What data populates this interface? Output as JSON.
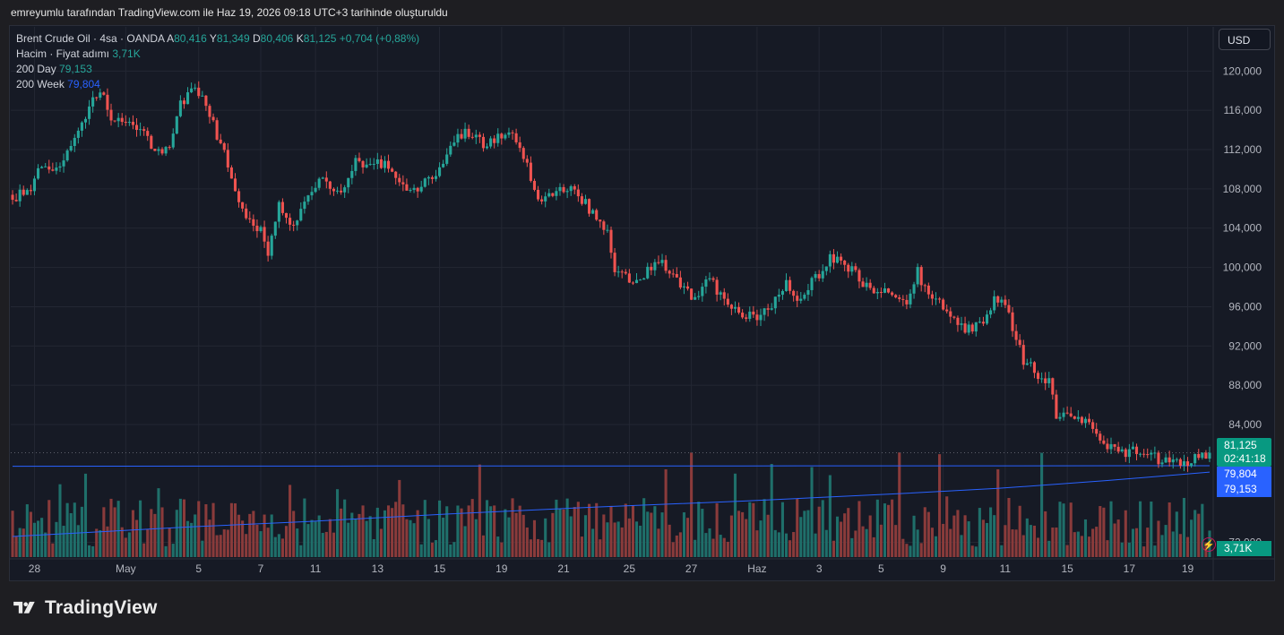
{
  "caption": "emreyumlu tarafından TradingView.com ile Haz 19, 2026 09:18 UTC+3 tarihinde oluşturuldu",
  "legend": {
    "symbol": "Brent Crude Oil · 4sa · OANDA",
    "o_label": "A",
    "o_value": "80,416",
    "h_label": "Y",
    "h_value": "81,349",
    "l_label": "D",
    "l_value": "80,406",
    "c_label": "K",
    "c_value": "81,125",
    "change": "+0,704 (+0,88%)",
    "volume_label": "Hacim · Fiyat adımı",
    "volume_value": "3,71K",
    "sma_day_label": "200 Day",
    "sma_day_value": "79,153",
    "sma_week_label": "200 Week",
    "sma_week_value": "79,804"
  },
  "currency_button": "USD",
  "badges": {
    "price": "81,125",
    "countdown": "02:41:18",
    "sma_week": "79,804",
    "sma_day": "79,153",
    "volume": "3,71K"
  },
  "brand": "TradingView",
  "colors": {
    "background": "#161a25",
    "up": "#26a69a",
    "down": "#ef5350",
    "volume_up": "#1f6f6a",
    "volume_down": "#8a3b3b",
    "sma_week": "#2962ff",
    "sma_day": "#2962ff",
    "grid": "#232733",
    "axis_text": "#b2b5be"
  },
  "chart_data": {
    "type": "candlestick",
    "title": "Brent Crude Oil · 4sa · OANDA",
    "y_axis_ticks": [
      120000,
      116000,
      112000,
      108000,
      104000,
      100000,
      96000,
      92000,
      88000,
      84000,
      72000
    ],
    "y_tick_labels": [
      "120,000",
      "116,000",
      "112,000",
      "108,000",
      "104,000",
      "100,000",
      "96,000",
      "92,000",
      "88,000",
      "84,000",
      "72,000"
    ],
    "ylim": [
      70500,
      124500
    ],
    "x_tick_labels": [
      "28",
      "May",
      "5",
      "7",
      "11",
      "13",
      "15",
      "19",
      "21",
      "25",
      "27",
      "Haz",
      "3",
      "5",
      "9",
      "11",
      "15",
      "17",
      "19"
    ],
    "x_tick_positions": [
      6,
      31,
      51,
      68,
      83,
      100,
      117,
      134,
      151,
      169,
      186,
      204,
      221,
      238,
      255,
      272,
      289,
      306,
      322
    ],
    "candle_count": 329,
    "price_path": [
      [
        0,
        107000
      ],
      [
        5,
        108200
      ],
      [
        8,
        110500
      ],
      [
        12,
        110000
      ],
      [
        16,
        112500
      ],
      [
        19,
        115000
      ],
      [
        22,
        117000
      ],
      [
        25,
        117500
      ],
      [
        27,
        115500
      ],
      [
        30,
        115000
      ],
      [
        34,
        114500
      ],
      [
        37,
        113000
      ],
      [
        40,
        111500
      ],
      [
        43,
        112000
      ],
      [
        46,
        116500
      ],
      [
        49,
        118500
      ],
      [
        52,
        117000
      ],
      [
        55,
        114500
      ],
      [
        58,
        111500
      ],
      [
        61,
        108000
      ],
      [
        63,
        106200
      ],
      [
        66,
        104200
      ],
      [
        68,
        104000
      ],
      [
        70,
        101500
      ],
      [
        73,
        106500
      ],
      [
        75,
        104800
      ],
      [
        77,
        104200
      ],
      [
        81,
        107000
      ],
      [
        84,
        109000
      ],
      [
        86,
        108800
      ],
      [
        89,
        107700
      ],
      [
        91,
        108200
      ],
      [
        94,
        111000
      ],
      [
        97,
        110500
      ],
      [
        100,
        111000
      ],
      [
        103,
        110000
      ],
      [
        106,
        109000
      ],
      [
        109,
        107500
      ],
      [
        112,
        108500
      ],
      [
        115,
        109000
      ],
      [
        118,
        111000
      ],
      [
        121,
        113000
      ],
      [
        124,
        114000
      ],
      [
        127,
        113000
      ],
      [
        130,
        112500
      ],
      [
        133,
        113500
      ],
      [
        136,
        113500
      ],
      [
        138,
        113000
      ],
      [
        141,
        110500
      ],
      [
        144,
        107000
      ],
      [
        147,
        107500
      ],
      [
        150,
        108000
      ],
      [
        153,
        108500
      ],
      [
        156,
        107000
      ],
      [
        159,
        105500
      ],
      [
        162,
        104200
      ],
      [
        163,
        103700
      ],
      [
        165,
        99800
      ],
      [
        168,
        99000
      ],
      [
        170,
        98500
      ],
      [
        173,
        99400
      ],
      [
        176,
        100500
      ],
      [
        179,
        100200
      ],
      [
        182,
        99000
      ],
      [
        185,
        97300
      ],
      [
        188,
        96700
      ],
      [
        191,
        99200
      ],
      [
        194,
        97000
      ],
      [
        197,
        96000
      ],
      [
        200,
        95200
      ],
      [
        203,
        95000
      ],
      [
        206,
        95500
      ],
      [
        209,
        96600
      ],
      [
        212,
        98500
      ],
      [
        215,
        97000
      ],
      [
        218,
        98000
      ],
      [
        221,
        99200
      ],
      [
        224,
        101000
      ],
      [
        227,
        100500
      ],
      [
        230,
        99600
      ],
      [
        233,
        98500
      ],
      [
        236,
        97600
      ],
      [
        239,
        97800
      ],
      [
        242,
        97000
      ],
      [
        245,
        96000
      ],
      [
        248,
        99500
      ],
      [
        251,
        97000
      ],
      [
        254,
        96300
      ],
      [
        257,
        94600
      ],
      [
        260,
        93800
      ],
      [
        263,
        94000
      ],
      [
        266,
        94500
      ],
      [
        269,
        96700
      ],
      [
        272,
        96000
      ],
      [
        275,
        93000
      ],
      [
        277,
        90500
      ],
      [
        280,
        89500
      ],
      [
        282,
        88800
      ],
      [
        284,
        88400
      ],
      [
        286,
        85000
      ],
      [
        290,
        85100
      ],
      [
        293,
        84600
      ],
      [
        296,
        83500
      ],
      [
        299,
        82000
      ],
      [
        302,
        81500
      ],
      [
        305,
        81000
      ],
      [
        308,
        81500
      ],
      [
        311,
        81300
      ],
      [
        314,
        80400
      ],
      [
        317,
        80200
      ],
      [
        320,
        80000
      ],
      [
        323,
        80400
      ],
      [
        326,
        80700
      ],
      [
        328,
        81125
      ]
    ],
    "volume_max": 3900,
    "series": [
      {
        "name": "200 Day",
        "value": 79153
      },
      {
        "name": "200 Week",
        "value": 79804
      }
    ],
    "sma_day_path": [
      [
        0,
        72600
      ],
      [
        20,
        73000
      ],
      [
        50,
        73600
      ],
      [
        80,
        74100
      ],
      [
        120,
        74900
      ],
      [
        160,
        75600
      ],
      [
        200,
        76200
      ],
      [
        240,
        76900
      ],
      [
        270,
        77500
      ],
      [
        300,
        78300
      ],
      [
        328,
        79153
      ]
    ],
    "sma_week_path": [
      [
        0,
        79750
      ],
      [
        100,
        79780
      ],
      [
        200,
        79790
      ],
      [
        328,
        79804
      ]
    ],
    "last_price": 81125,
    "grid": true
  }
}
